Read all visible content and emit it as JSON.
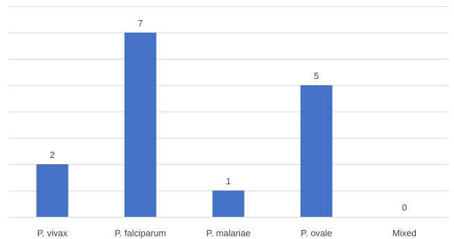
{
  "chart_data": {
    "type": "bar",
    "categories": [
      "P. vivax",
      "P. falciparum",
      "P. malariae",
      "P. ovale",
      "Mixed"
    ],
    "values": [
      2,
      7,
      1,
      5,
      0
    ],
    "title": "",
    "xlabel": "",
    "ylabel": "",
    "ylim": [
      0,
      8
    ],
    "grid": true,
    "data_labels": true,
    "legend": "none",
    "colors": {
      "bar": "#4472c4",
      "grid": "#d9d9d9",
      "text": "#404040"
    }
  }
}
